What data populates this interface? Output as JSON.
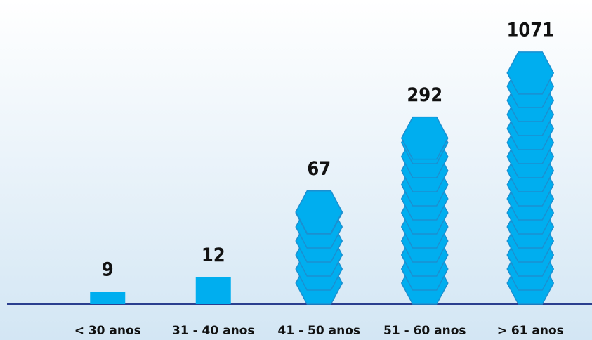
{
  "chart_data": {
    "type": "pictograph",
    "categories": [
      "< 30 anos",
      "31 - 40 anos",
      "41 - 50 anos",
      "51 - 60 anos",
      "> 61 anos"
    ],
    "values": [
      9,
      12,
      67,
      292,
      1071
    ],
    "color": "#00aeef",
    "log_scale": true,
    "ylim": [
      7,
      1300
    ]
  }
}
